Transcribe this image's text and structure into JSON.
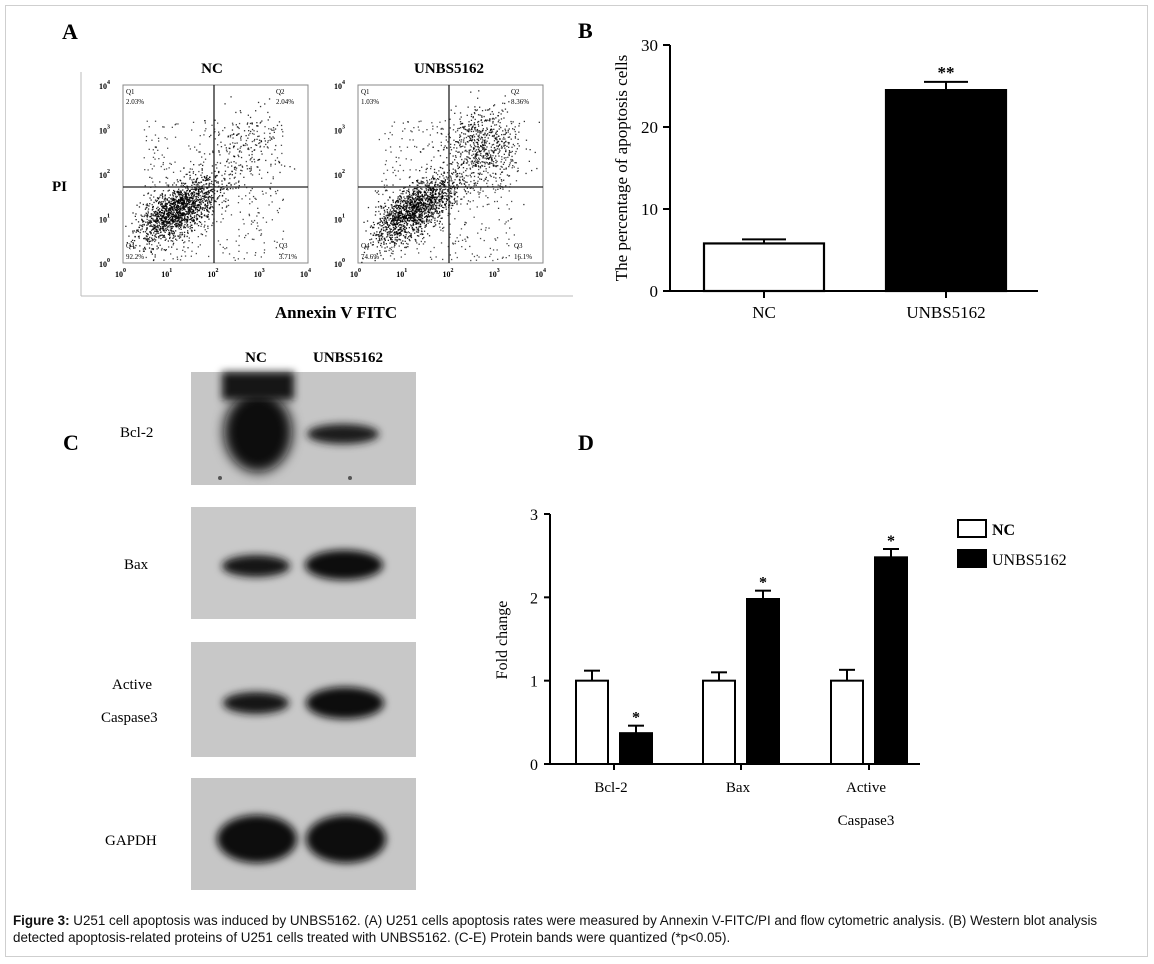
{
  "panel_labels": {
    "a": "A",
    "b": "B",
    "c": "C",
    "d": "D"
  },
  "flow": {
    "y_label": "PI",
    "x_label": "Annexin V FITC",
    "ticks": [
      "10",
      "10",
      "10",
      "10",
      "10"
    ],
    "tick_exps": [
      "0",
      "1",
      "2",
      "3",
      "4"
    ],
    "plots": [
      {
        "title": "NC",
        "q1_name": "Q1",
        "q1": "2.03%",
        "q2_name": "Q2",
        "q2": "2.04%",
        "q3_name": "Q3",
        "q3": "3.71%",
        "q4_name": "Q4",
        "q4": "92.2%"
      },
      {
        "title": "UNBS5162",
        "q1_name": "Q1",
        "q1": "1.03%",
        "q2_name": "Q2",
        "q2": "8.36%",
        "q3_name": "Q3",
        "q3": "16.1%",
        "q4_name": "Q4",
        "q4": "74.6%"
      }
    ]
  },
  "blot": {
    "lanes": [
      "NC",
      "UNBS5162"
    ],
    "proteins": [
      "Bcl-2",
      "Bax",
      "Active",
      "Caspase3",
      "GAPDH"
    ]
  },
  "caption": {
    "label": "Figure 3:",
    "text": " U251 cell apoptosis was induced by UNBS5162. (A) U251 cells apoptosis rates were measured by Annexin V-FITC/PI and flow cytometric analysis. (B) Western blot analysis detected apoptosis-related proteins of U251 cells treated with UNBS5162. (C-E) Protein bands were quantized (*p<0.05)."
  },
  "chart_data": [
    {
      "type": "bar",
      "ylabel": "The percentage of apoptosis cells",
      "xlabel": "",
      "categories": [
        "NC",
        "UNBS5162"
      ],
      "values": [
        5.8,
        24.5
      ],
      "errors": [
        0.5,
        1.0
      ],
      "ylim": [
        0,
        30
      ],
      "yticks": [
        0,
        10,
        20,
        30
      ],
      "colors": [
        "#ffffff",
        "#000000"
      ],
      "annotations": [
        "",
        "**"
      ]
    },
    {
      "type": "bar",
      "ylabel": "Fold change",
      "xlabel": "",
      "categories": [
        "Bcl-2",
        "Bax",
        "Active Caspase3"
      ],
      "category_lines": [
        [
          "Bcl-2"
        ],
        [
          "Bax"
        ],
        [
          "Active",
          "Caspase3"
        ]
      ],
      "ylim": [
        0,
        3
      ],
      "yticks": [
        0,
        1,
        2,
        3
      ],
      "legend": "top-right",
      "series": [
        {
          "name": "NC",
          "color": "#ffffff",
          "values": [
            1.0,
            1.0,
            1.0
          ],
          "errors": [
            0.12,
            0.1,
            0.13
          ],
          "annotations": [
            "",
            "",
            ""
          ]
        },
        {
          "name": "UNBS5162",
          "color": "#000000",
          "values": [
            0.37,
            1.98,
            2.48
          ],
          "errors": [
            0.09,
            0.1,
            0.1
          ],
          "annotations": [
            "*",
            "*",
            "*"
          ]
        }
      ]
    }
  ]
}
